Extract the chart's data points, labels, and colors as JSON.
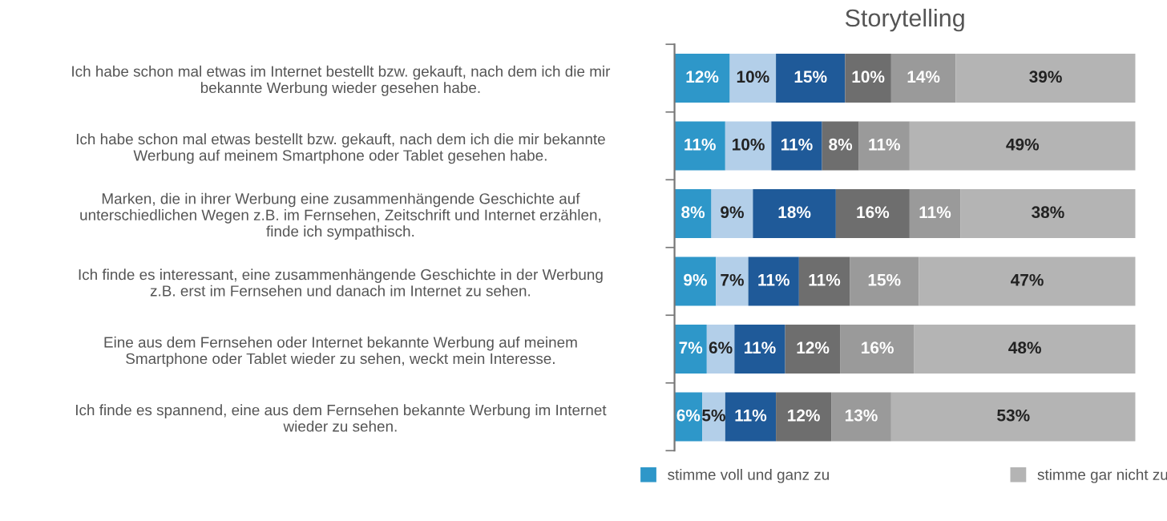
{
  "chart_data": {
    "type": "bar",
    "orientation": "horizontal",
    "stacked": true,
    "title": "Storytelling",
    "categories": [
      "Ich habe schon mal etwas im Internet bestellt bzw. gekauft, nach dem ich die mir\nbekannte Werbung wieder gesehen habe.",
      "Ich habe schon mal etwas bestellt bzw. gekauft, nach dem ich die mir bekannte\nWerbung auf meinem Smartphone oder Tablet gesehen habe.",
      "Marken, die in ihrer Werbung eine zusammenhängende Geschichte auf\nunterschiedlichen Wegen z.B. im Fernsehen, Zeitschrift und Internet erzählen,\nfinde ich sympathisch.",
      "Ich finde es interessant, eine zusammenhängende Geschichte in der Werbung\nz.B. erst im Fernsehen und danach im Internet zu sehen.",
      "Eine aus dem Fernsehen oder Internet bekannte Werbung auf meinem\nSmartphone oder Tablet wieder zu sehen, weckt mein Interesse.",
      "Ich finde es spannend, eine aus dem Fernsehen bekannte Werbung im Internet\nwieder zu sehen."
    ],
    "series": [
      {
        "name": "stimme voll und ganz zu",
        "color": "#2e97c9",
        "values": [
          12,
          11,
          8,
          9,
          7,
          6
        ],
        "value_labels": [
          "12%",
          "11%",
          "8%",
          "9%",
          "7%",
          "6%"
        ]
      },
      {
        "color": "#b3cfe9",
        "values": [
          10,
          10,
          9,
          7,
          6,
          5
        ],
        "value_labels": [
          "10%",
          "10%",
          "9%",
          "7%",
          "6%",
          "5%"
        ]
      },
      {
        "color": "#1f5a99",
        "values": [
          15,
          11,
          18,
          11,
          11,
          11
        ],
        "value_labels": [
          "15%",
          "11%",
          "18%",
          "11%",
          "11%",
          "11%"
        ]
      },
      {
        "color": "#6e6e6e",
        "values": [
          10,
          8,
          16,
          11,
          12,
          12
        ],
        "value_labels": [
          "10%",
          "8%",
          "16%",
          "11%",
          "12%",
          "12%"
        ]
      },
      {
        "color": "#9a9a9a",
        "values": [
          14,
          11,
          11,
          15,
          16,
          13
        ],
        "value_labels": [
          "14%",
          "11%",
          "11%",
          "15%",
          "16%",
          "13%"
        ]
      },
      {
        "name": "stimme gar nicht zu",
        "color": "#b4b4b4",
        "values": [
          39,
          49,
          38,
          47,
          48,
          53
        ],
        "value_labels": [
          "39%",
          "49%",
          "38%",
          "47%",
          "48%",
          "53%"
        ]
      }
    ],
    "legend": "bottom",
    "grid": false,
    "tick_labels": "y"
  }
}
